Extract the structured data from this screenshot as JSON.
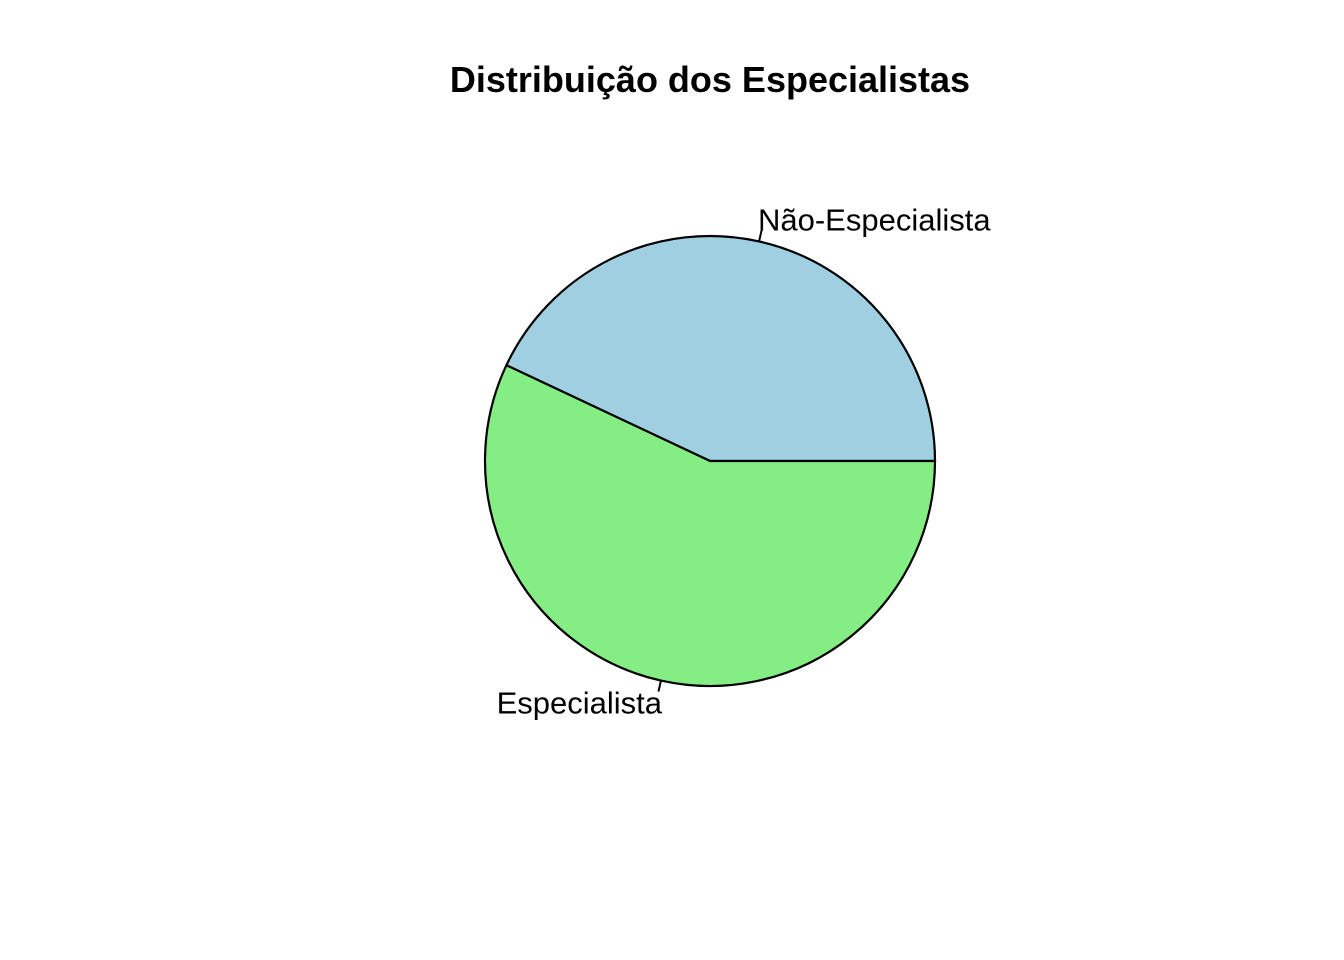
{
  "chart_data": {
    "type": "pie",
    "title": "Distribuição dos Especialistas",
    "slices": [
      {
        "label": "Não-Especialista",
        "value": 43,
        "color": "#9FCFE0"
      },
      {
        "label": "Especialista",
        "value": 57,
        "color": "#84EE84"
      }
    ],
    "start_angle_deg": 0,
    "direction": "counterclockwise"
  }
}
